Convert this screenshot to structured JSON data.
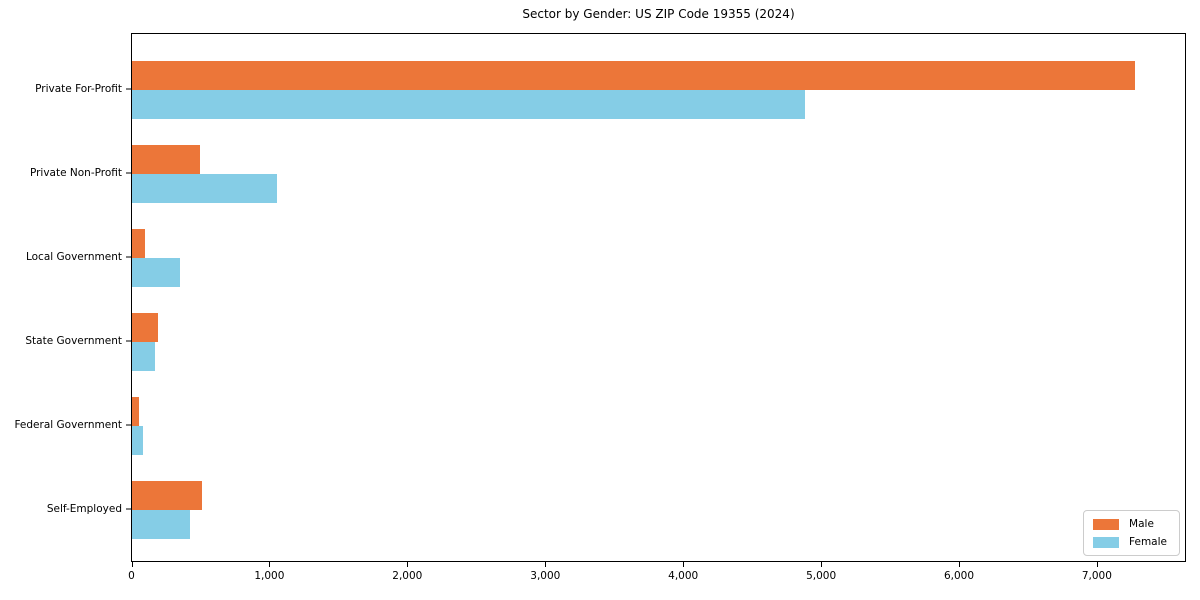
{
  "chart_data": {
    "type": "bar",
    "orientation": "horizontal",
    "title": "Sector by Gender: US ZIP Code 19355 (2024)",
    "categories": [
      "Private For-Profit",
      "Private Non-Profit",
      "Local Government",
      "State Government",
      "Federal Government",
      "Self-Employed"
    ],
    "series": [
      {
        "name": "Male",
        "color": "#ec7639",
        "values": [
          7270,
          495,
          95,
          190,
          48,
          505
        ]
      },
      {
        "name": "Female",
        "color": "#85cde6",
        "values": [
          4880,
          1050,
          350,
          170,
          80,
          420
        ]
      }
    ],
    "xlabel": "",
    "ylabel": "",
    "x_ticks": [
      0,
      1000,
      2000,
      3000,
      4000,
      5000,
      6000,
      7000
    ],
    "x_tick_labels": [
      "0",
      "1,000",
      "2,000",
      "3,000",
      "4,000",
      "5,000",
      "6,000",
      "7,000"
    ],
    "xlim": [
      0,
      7635
    ],
    "grid": false,
    "legend_position": "lower right",
    "colors": {
      "male": "#ec7639",
      "female": "#85cde6",
      "spine": "#000000",
      "text": "#000000",
      "legend_border": "#cccccc"
    }
  }
}
